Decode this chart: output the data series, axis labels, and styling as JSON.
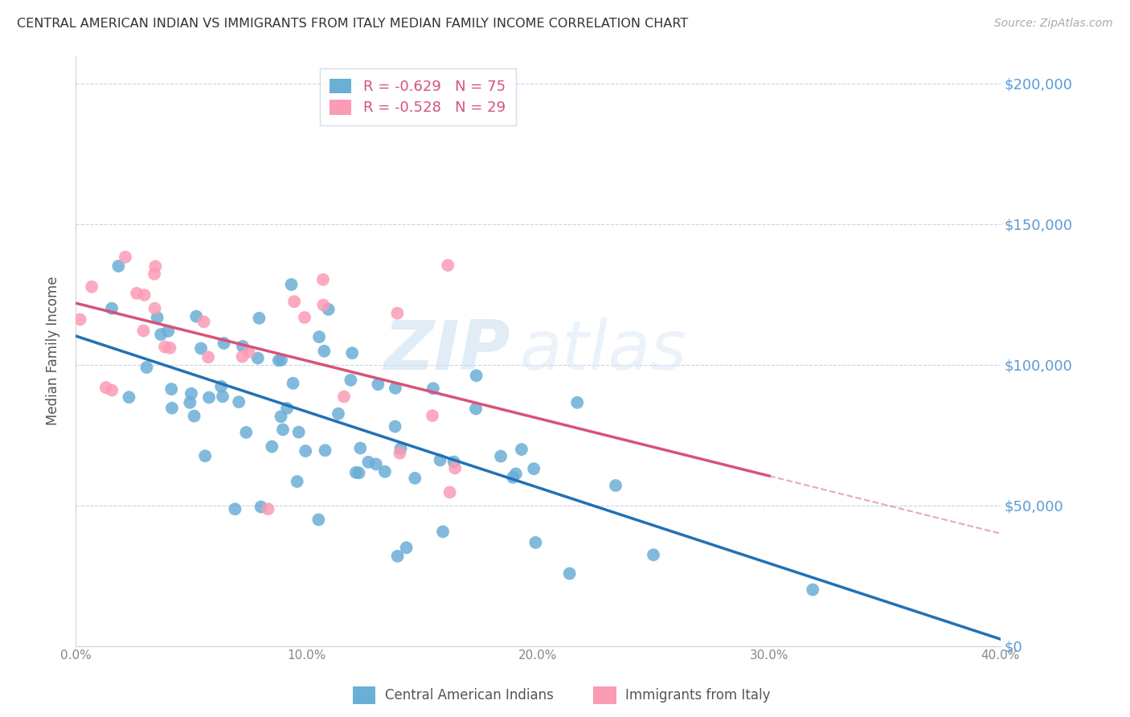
{
  "title": "CENTRAL AMERICAN INDIAN VS IMMIGRANTS FROM ITALY MEDIAN FAMILY INCOME CORRELATION CHART",
  "source": "Source: ZipAtlas.com",
  "ylabel": "Median Family Income",
  "ytick_values": [
    0,
    50000,
    100000,
    150000,
    200000
  ],
  "ylim": [
    0,
    210000
  ],
  "xlim": [
    0.0,
    0.4
  ],
  "blue_R": -0.629,
  "blue_N": 75,
  "pink_R": -0.528,
  "pink_N": 29,
  "blue_color": "#6baed6",
  "blue_color_dark": "#2171b5",
  "pink_color": "#fc9bb4",
  "pink_color_dark": "#d6537a",
  "blue_label": "Central American Indians",
  "pink_label": "Immigrants from Italy",
  "watermark_zip": "ZIP",
  "watermark_atlas": "atlas",
  "background_color": "#ffffff",
  "grid_color": "#c8d4e8",
  "right_axis_color": "#5b9bd5",
  "legend_text_color": "#d6537a"
}
